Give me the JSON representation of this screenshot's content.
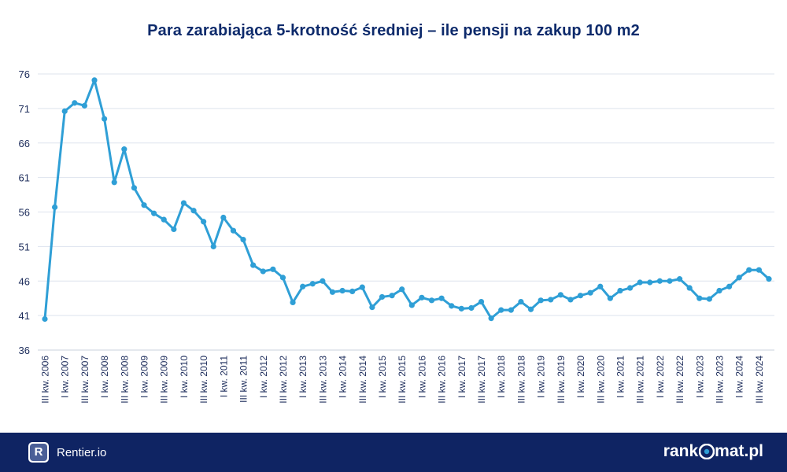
{
  "title": "Para zarabiająca 5-krotność średniej – ile pensji na zakup 100 m2",
  "footer": {
    "left_badge": "R",
    "left_brand": "Rentier.io",
    "right_brand_pre": "rank",
    "right_brand_post": "mat.pl"
  },
  "colors": {
    "line": "#2f9fd6",
    "title": "#0d2a6b",
    "footer_bg": "#0f2463",
    "grid": "#dde3ee",
    "axis_text": "#1b2b5a"
  },
  "chart_data": {
    "type": "line",
    "title": "Para zarabiająca 5-krotność średniej – ile pensji na zakup 100 m2",
    "ylim": [
      36,
      76
    ],
    "yticks": [
      36,
      41,
      46,
      51,
      56,
      61,
      66,
      71,
      76
    ],
    "grid": true,
    "x_labels": [
      "III kw. 2006",
      "I kw. 2007",
      "III kw. 2007",
      "I kw. 2008",
      "III kw. 2008",
      "I kw. 2009",
      "III kw. 2009",
      "I kw. 2010",
      "III kw. 2010",
      "I kw. 2011",
      "III kw. 2011",
      "I kw. 2012",
      "III kw. 2012",
      "I kw. 2013",
      "III kw. 2013",
      "I kw. 2014",
      "III kw. 2014",
      "I kw. 2015",
      "III kw. 2015",
      "I kw. 2016",
      "III kw. 2016",
      "I kw. 2017",
      "III kw. 2017",
      "I kw. 2018",
      "III kw. 2018",
      "I kw. 2019",
      "III kw. 2019",
      "I kw. 2020",
      "III kw. 2020",
      "I kw. 2021",
      "III kw. 2021",
      "I kw. 2022",
      "III kw. 2022",
      "I kw. 2023",
      "III kw. 2023",
      "I kw. 2024",
      "III kw. 2024"
    ],
    "series": [
      {
        "values": [
          40.5,
          56.7,
          70.6,
          71.8,
          71.4,
          75.1,
          69.5,
          60.3,
          65.1,
          59.5,
          57.0,
          55.8,
          54.9,
          53.5,
          57.3,
          56.2,
          54.6,
          51.0,
          55.2,
          53.3,
          52.0,
          48.3,
          47.4,
          47.7,
          46.5,
          42.9,
          45.2,
          45.6,
          46.0,
          44.4,
          44.6,
          44.5,
          45.1,
          42.2,
          43.7,
          43.9,
          44.8,
          42.5,
          43.6,
          43.2,
          43.5,
          42.4,
          42.0,
          42.1,
          43.0,
          40.6,
          41.8,
          41.8,
          43.0,
          41.9,
          43.2,
          43.3,
          44.0,
          43.3,
          43.9,
          44.3,
          45.2,
          43.5,
          44.6,
          45.0,
          45.8,
          45.8,
          46.0,
          46.0,
          46.3,
          45.0,
          43.5,
          43.4,
          44.6,
          45.2,
          46.5,
          47.6,
          47.6,
          46.3
        ]
      }
    ]
  }
}
